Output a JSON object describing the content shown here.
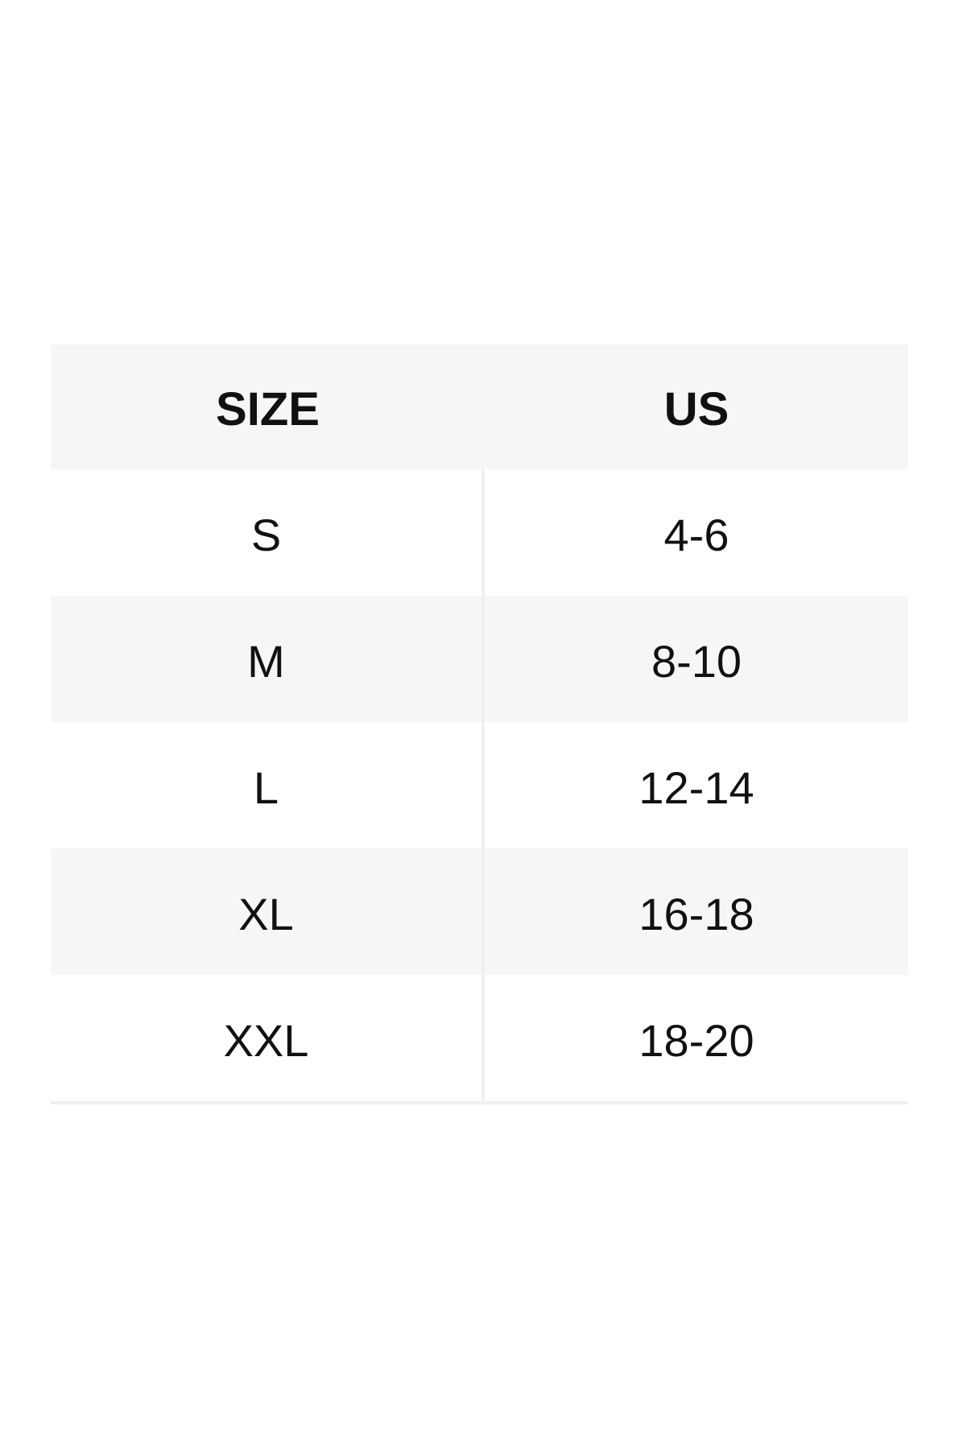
{
  "page": {
    "background": "#ffffff"
  },
  "size_chart": {
    "columns": [
      {
        "key": "size",
        "label": "SIZE"
      },
      {
        "key": "us",
        "label": "US"
      }
    ],
    "rows": [
      {
        "size": "S",
        "us": "4-6"
      },
      {
        "size": "M",
        "us": "8-10"
      },
      {
        "size": "L",
        "us": "12-14"
      },
      {
        "size": "XL",
        "us": "16-18"
      },
      {
        "size": "XXL",
        "us": "18-20"
      }
    ],
    "colors": {
      "header_bg": "#f6f6f6",
      "stripe_bg": "#f6f6f6",
      "row_bg": "#ffffff",
      "divider": "#f0f0f0",
      "text": "#111111"
    }
  }
}
